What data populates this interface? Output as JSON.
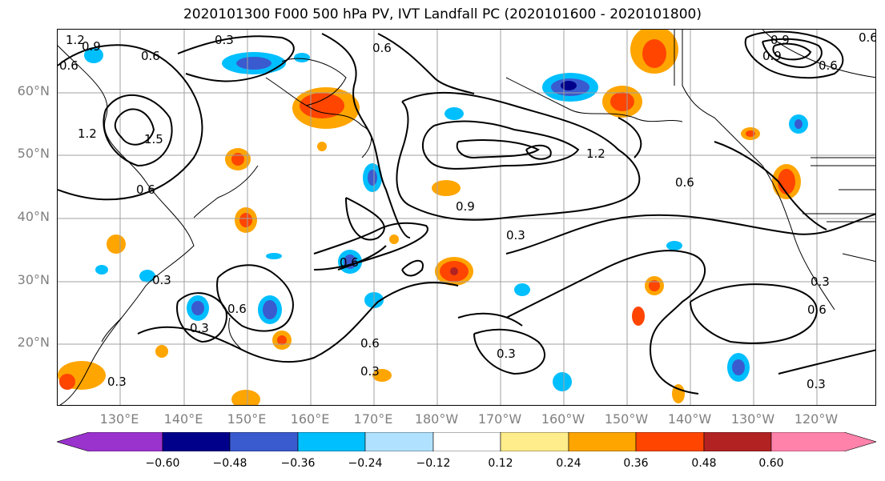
{
  "title": "2020101300 F000 500 hPa PV, IVT Landfall PC (2020101600 - 2020101800)",
  "lat_labels": [
    "60°N",
    "50°N",
    "40°N",
    "30°N",
    "20°N"
  ],
  "lon_labels": [
    "130°E",
    "140°E",
    "150°E",
    "160°E",
    "170°E",
    "180°W",
    "170°W",
    "160°W",
    "150°W",
    "140°W",
    "130°W",
    "120°W"
  ],
  "contour_labels": [
    "1.2",
    "0.9",
    "0.3",
    "0.6",
    "0.6",
    "0.6",
    "0.6",
    "1.5",
    "1.2",
    "1.2",
    "0.9",
    "0.6",
    "0.9",
    "0.3",
    "0.6",
    "0.3",
    "0.6",
    "0.3",
    "0.6",
    "0.3",
    "0.6",
    "0.3",
    "0.3",
    "0.3",
    "0.3",
    "0.6",
    "0.9",
    "0.6"
  ],
  "colorbar": {
    "tick_labels": [
      "−0.60",
      "−0.48",
      "−0.36",
      "−0.24",
      "−0.12",
      "0.12",
      "0.24",
      "0.36",
      "0.48",
      "0.60"
    ],
    "colors": [
      "#9a32cd",
      "#00008b",
      "#3a5bcf",
      "#00bfff",
      "#b0e2ff",
      "#ffffff",
      "#ffec8b",
      "#ffa500",
      "#ff4500",
      "#b22222",
      "#ff82ab"
    ]
  }
}
